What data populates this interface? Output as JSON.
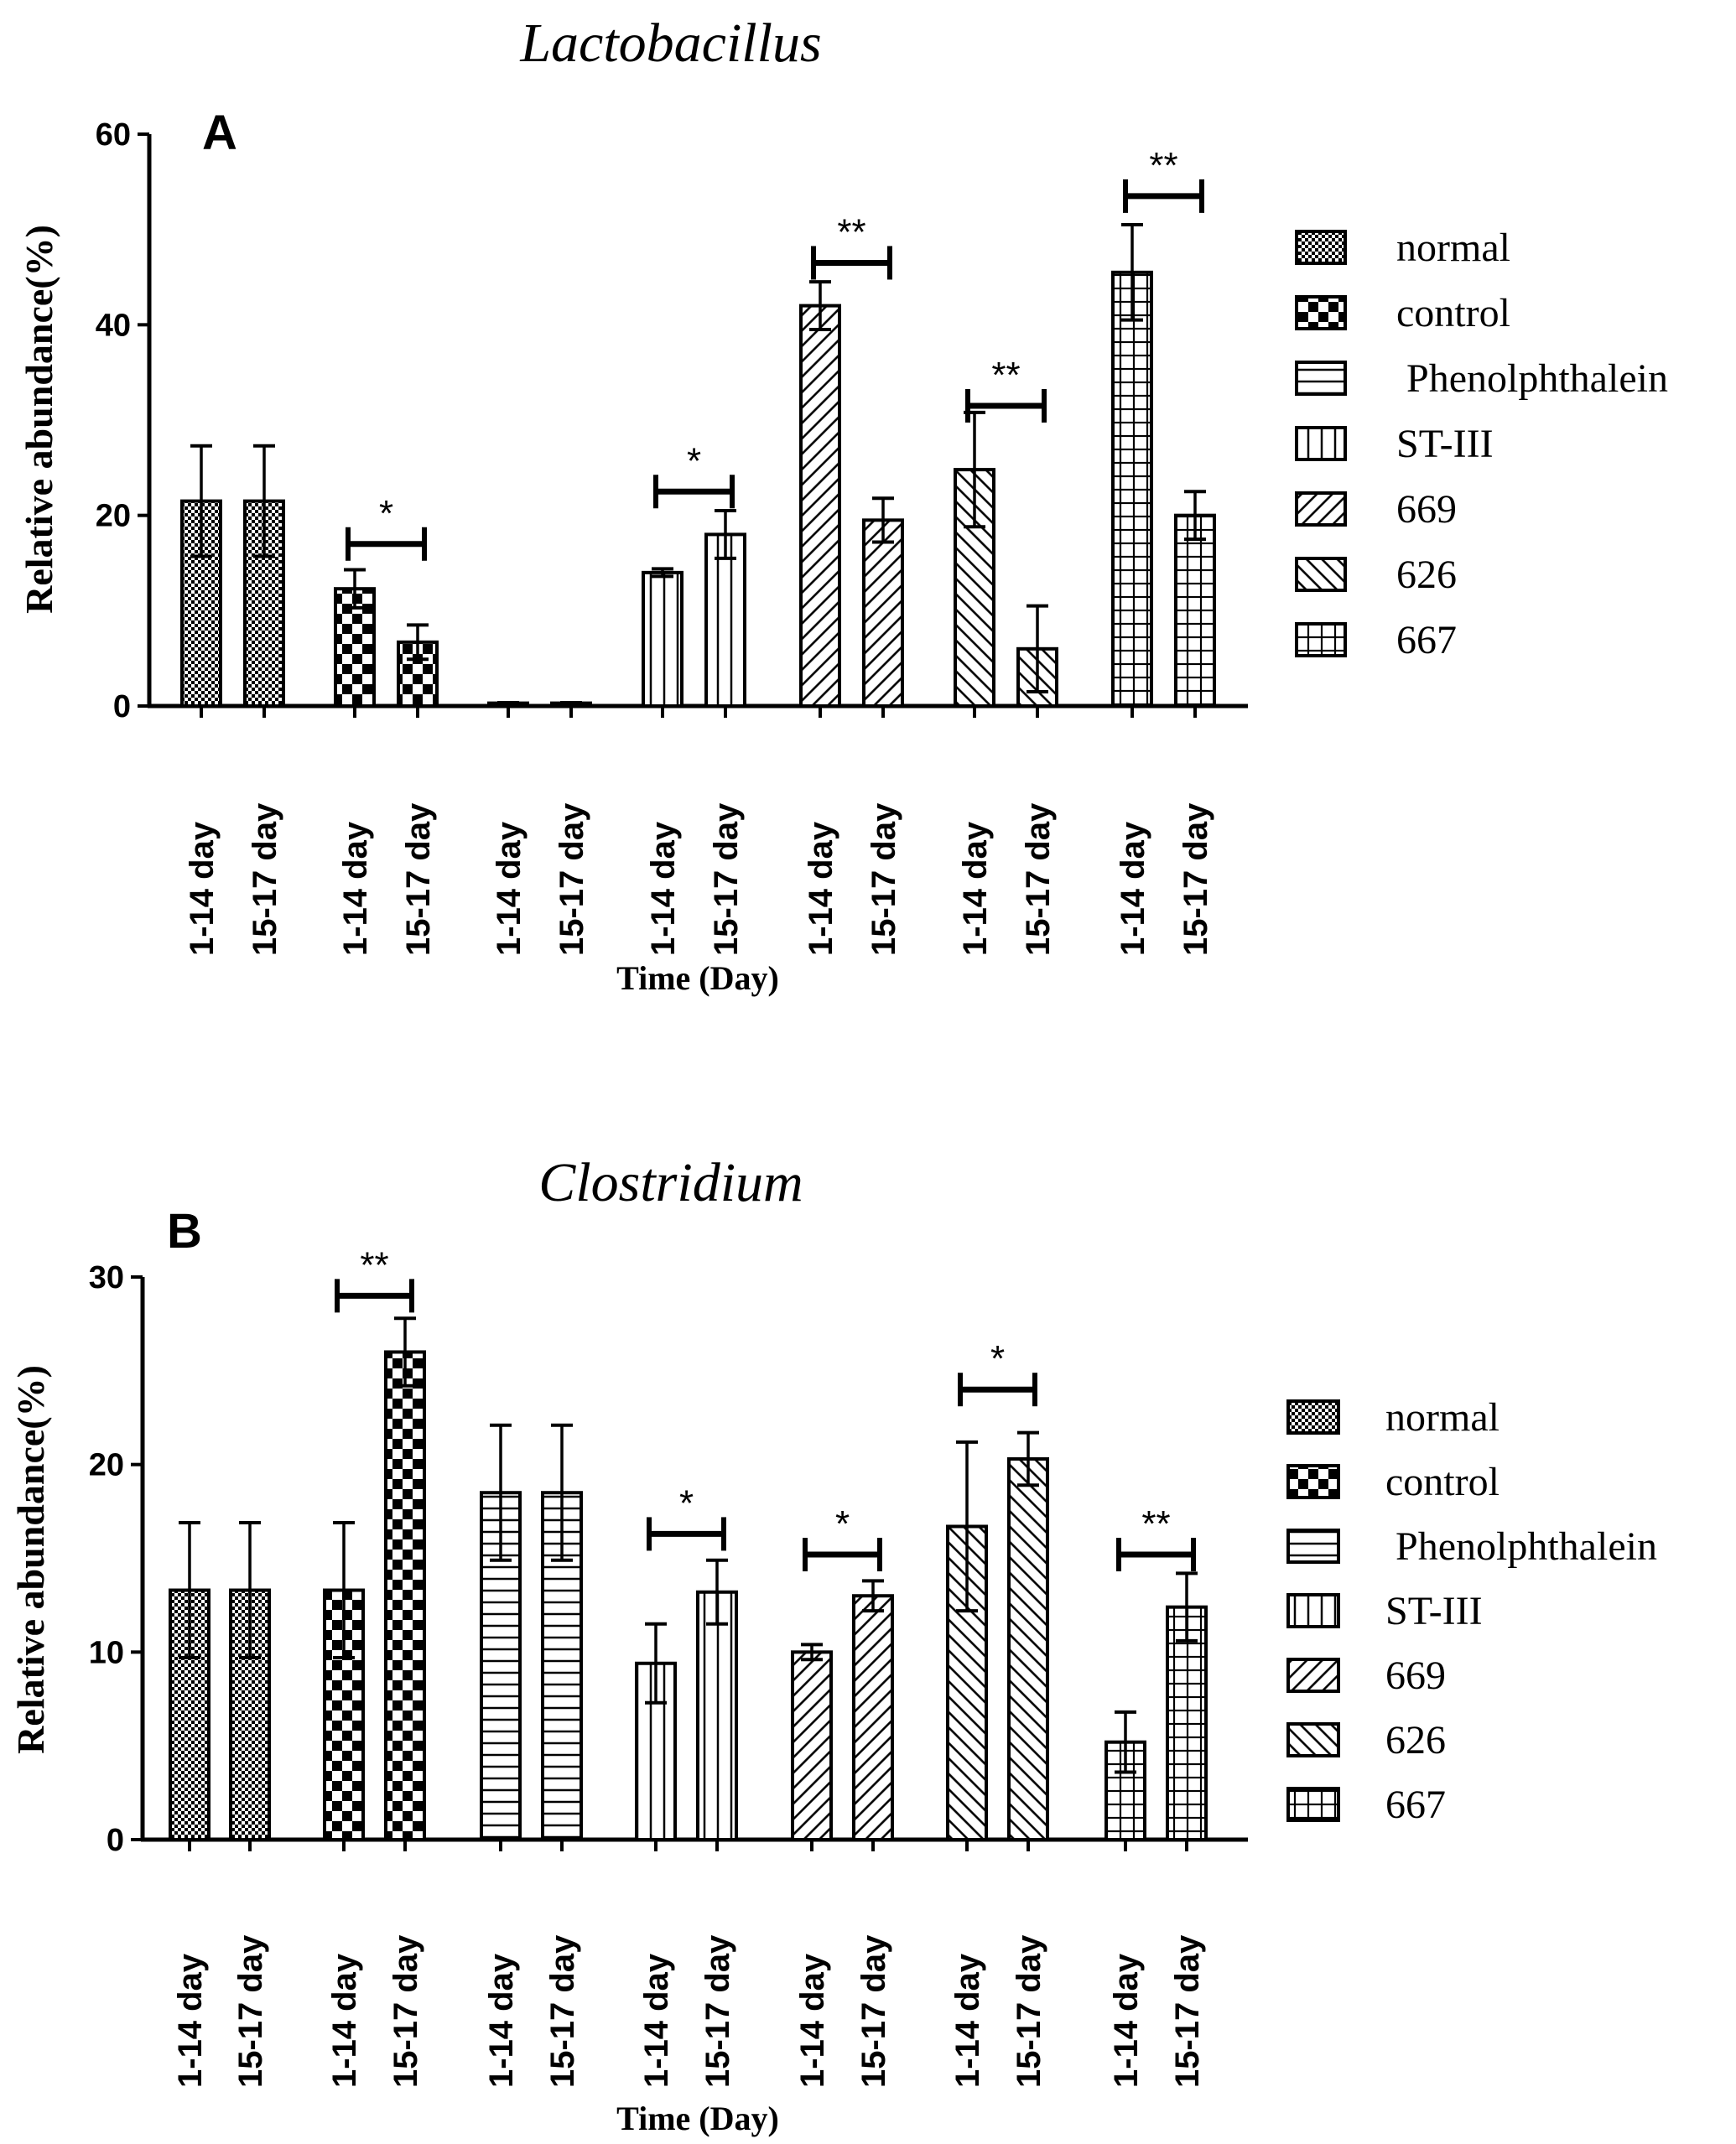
{
  "figure": {
    "x_label": "Time (Day)",
    "y_label": "Relative abundance(%)"
  },
  "legend": {
    "items": [
      {
        "label": "normal",
        "pattern": "dots"
      },
      {
        "label": "control",
        "pattern": "checker"
      },
      {
        "label": " Phenolphthalein",
        "pattern": "hlines"
      },
      {
        "label": "ST-III",
        "pattern": "vlines"
      },
      {
        "label": "669",
        "pattern": "diag-fwd"
      },
      {
        "label": "626",
        "pattern": "diag-back"
      },
      {
        "label": "667",
        "pattern": "grid"
      }
    ]
  },
  "chart_data": [
    {
      "type": "bar",
      "panel": "A",
      "title": "Lactobacillus",
      "xlabel": "Time (Day)",
      "ylabel": "Relative abundance(%)",
      "ylim": [
        0,
        60
      ],
      "yticks": [
        0,
        20,
        40,
        60
      ],
      "groups": [
        "normal",
        "control",
        "Phenolphthalein",
        "ST-III",
        "669",
        "626",
        "667"
      ],
      "categories": [
        "1-14 day",
        "15-17 day"
      ],
      "series": [
        {
          "group": "normal",
          "values": [
            21.5,
            21.5
          ],
          "errors": [
            5.8,
            5.8
          ]
        },
        {
          "group": "control",
          "values": [
            12.3,
            6.7
          ],
          "errors": [
            2.0,
            1.8
          ]
        },
        {
          "group": "Phenolphthalein",
          "values": [
            0.3,
            0.3
          ],
          "errors": [
            0.05,
            0.05
          ]
        },
        {
          "group": "ST-III",
          "values": [
            14.0,
            18.0
          ],
          "errors": [
            0.4,
            2.5
          ]
        },
        {
          "group": "669",
          "values": [
            42.0,
            19.5
          ],
          "errors": [
            2.5,
            2.3
          ]
        },
        {
          "group": "626",
          "values": [
            24.8,
            6.0
          ],
          "errors": [
            6.0,
            4.5
          ]
        },
        {
          "group": "667",
          "values": [
            45.5,
            20.0
          ],
          "errors": [
            5.0,
            2.5
          ]
        }
      ],
      "significance": [
        {
          "group": "control",
          "label": "*",
          "y": 17.0
        },
        {
          "group": "ST-III",
          "label": "*",
          "y": 22.5
        },
        {
          "group": "669",
          "label": "**",
          "y": 46.5
        },
        {
          "group": "626",
          "label": "**",
          "y": 31.5
        },
        {
          "group": "667",
          "label": "**",
          "y": 53.5
        }
      ]
    },
    {
      "type": "bar",
      "panel": "B",
      "title": "Clostridium",
      "xlabel": "Time (Day)",
      "ylabel": "Relative abundance(%)",
      "ylim": [
        0,
        30
      ],
      "yticks": [
        0,
        10,
        20,
        30
      ],
      "groups": [
        "normal",
        "control",
        "Phenolphthalein",
        "ST-III",
        "669",
        "626",
        "667"
      ],
      "categories": [
        "1-14 day",
        "15-17 day"
      ],
      "series": [
        {
          "group": "normal",
          "values": [
            13.3,
            13.3
          ],
          "errors": [
            3.6,
            3.6
          ]
        },
        {
          "group": "control",
          "values": [
            13.3,
            26.0
          ],
          "errors": [
            3.6,
            1.8
          ]
        },
        {
          "group": "Phenolphthalein",
          "values": [
            18.5,
            18.5
          ],
          "errors": [
            3.6,
            3.6
          ]
        },
        {
          "group": "ST-III",
          "values": [
            9.4,
            13.2
          ],
          "errors": [
            2.1,
            1.7
          ]
        },
        {
          "group": "669",
          "values": [
            10.0,
            13.0
          ],
          "errors": [
            0.4,
            0.8
          ]
        },
        {
          "group": "626",
          "values": [
            16.7,
            20.3
          ],
          "errors": [
            4.5,
            1.4
          ]
        },
        {
          "group": "667",
          "values": [
            5.2,
            12.4
          ],
          "errors": [
            1.6,
            1.8
          ]
        }
      ],
      "significance": [
        {
          "group": "control",
          "label": "**",
          "y": 29.0
        },
        {
          "group": "ST-III",
          "label": "*",
          "y": 16.3
        },
        {
          "group": "669",
          "label": "*",
          "y": 15.2
        },
        {
          "group": "626",
          "label": "*",
          "y": 24.0
        },
        {
          "group": "667",
          "label": "**",
          "y": 15.2
        }
      ]
    }
  ]
}
